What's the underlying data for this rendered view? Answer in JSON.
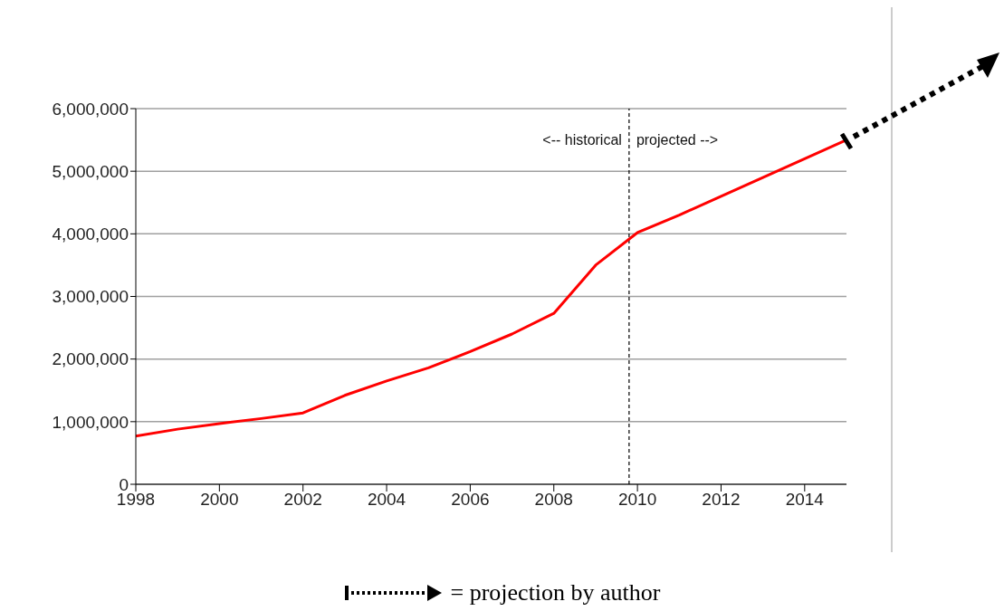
{
  "chart_data": {
    "type": "line",
    "x": [
      1998,
      1999,
      2000,
      2001,
      2002,
      2003,
      2004,
      2005,
      2006,
      2007,
      2008,
      2009,
      2010,
      2011,
      2012,
      2013,
      2014,
      2015
    ],
    "series": [
      {
        "color": "#ff0000",
        "values": [
          770000,
          880000,
          970000,
          1050000,
          1140000,
          1420000,
          1650000,
          1860000,
          2120000,
          2400000,
          2730000,
          3500000,
          4020000,
          4300000,
          4600000,
          4900000,
          5200000,
          5500000
        ]
      }
    ],
    "xlim": [
      1998,
      2015
    ],
    "xticks": [
      1998,
      2000,
      2002,
      2004,
      2006,
      2008,
      2010,
      2012,
      2014
    ],
    "ylim": [
      0,
      6000000
    ],
    "yticks": [
      0,
      {
        "value": 1000000,
        "label": "1,000,000"
      },
      {
        "value": 2000000,
        "label": "2,000,000"
      },
      {
        "value": 3000000,
        "label": "3,000,000"
      },
      {
        "value": 4000000,
        "label": "4,000,000"
      },
      {
        "value": 5000000,
        "label": "5,000,000"
      },
      {
        "value": 6000000,
        "label": "6,000,000"
      }
    ],
    "grid": "y",
    "marker": "none",
    "line_style": "solid",
    "ref_lines": [
      {
        "axis": "x",
        "value": 2009.8,
        "color": "#000000",
        "line_style": "dashed"
      }
    ],
    "annotations": [
      "<-- historical",
      "projected -->",
      "= projection by author"
    ]
  }
}
